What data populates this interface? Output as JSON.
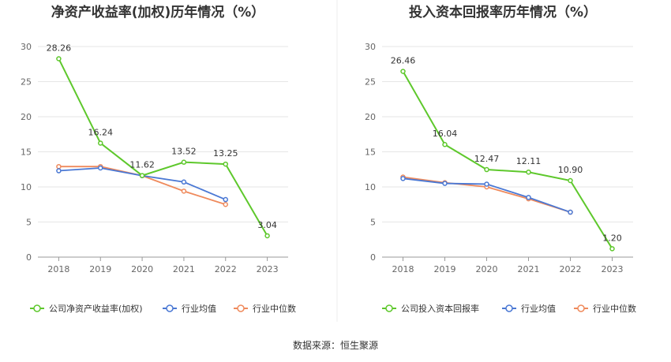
{
  "source_note": "数据来源：恒生聚源",
  "colors": {
    "company": "#5ec82c",
    "avg": "#4a78d4",
    "median": "#ef8a5c"
  },
  "chart_data": [
    {
      "type": "line",
      "title": "净资产收益率(加权)历年情况（%）",
      "categories": [
        "2018",
        "2019",
        "2020",
        "2021",
        "2022",
        "2023"
      ],
      "ylim": [
        0,
        30
      ],
      "yticks": [
        0,
        5,
        10,
        15,
        20,
        25,
        30
      ],
      "grid": true,
      "legend_position": "bottom",
      "series": [
        {
          "name": "公司净资产收益率(加权)",
          "values": [
            28.26,
            16.24,
            11.62,
            13.52,
            13.25,
            3.04
          ],
          "labels": [
            "28.26",
            "16.24",
            "11.62",
            "13.52",
            "13.25",
            "3.04"
          ]
        },
        {
          "name": "行业均值",
          "values": [
            12.3,
            12.7,
            11.6,
            10.7,
            8.2,
            null
          ]
        },
        {
          "name": "行业中位数",
          "values": [
            12.9,
            12.9,
            11.6,
            9.4,
            7.5,
            null
          ]
        }
      ]
    },
    {
      "type": "line",
      "title": "投入资本回报率历年情况（%）",
      "categories": [
        "2018",
        "2019",
        "2020",
        "2021",
        "2022",
        "2023"
      ],
      "ylim": [
        0,
        30
      ],
      "yticks": [
        0,
        5,
        10,
        15,
        20,
        25,
        30
      ],
      "grid": true,
      "legend_position": "bottom",
      "series": [
        {
          "name": "公司投入资本回报率",
          "values": [
            26.46,
            16.04,
            12.47,
            12.11,
            10.9,
            1.2
          ],
          "labels": [
            "26.46",
            "16.04",
            "12.47",
            "12.11",
            "10.90",
            "1.20"
          ]
        },
        {
          "name": "行业均值",
          "values": [
            11.2,
            10.5,
            10.4,
            8.5,
            6.4,
            null
          ]
        },
        {
          "name": "行业中位数",
          "values": [
            11.4,
            10.6,
            10.0,
            8.3,
            6.4,
            null
          ]
        }
      ]
    }
  ]
}
